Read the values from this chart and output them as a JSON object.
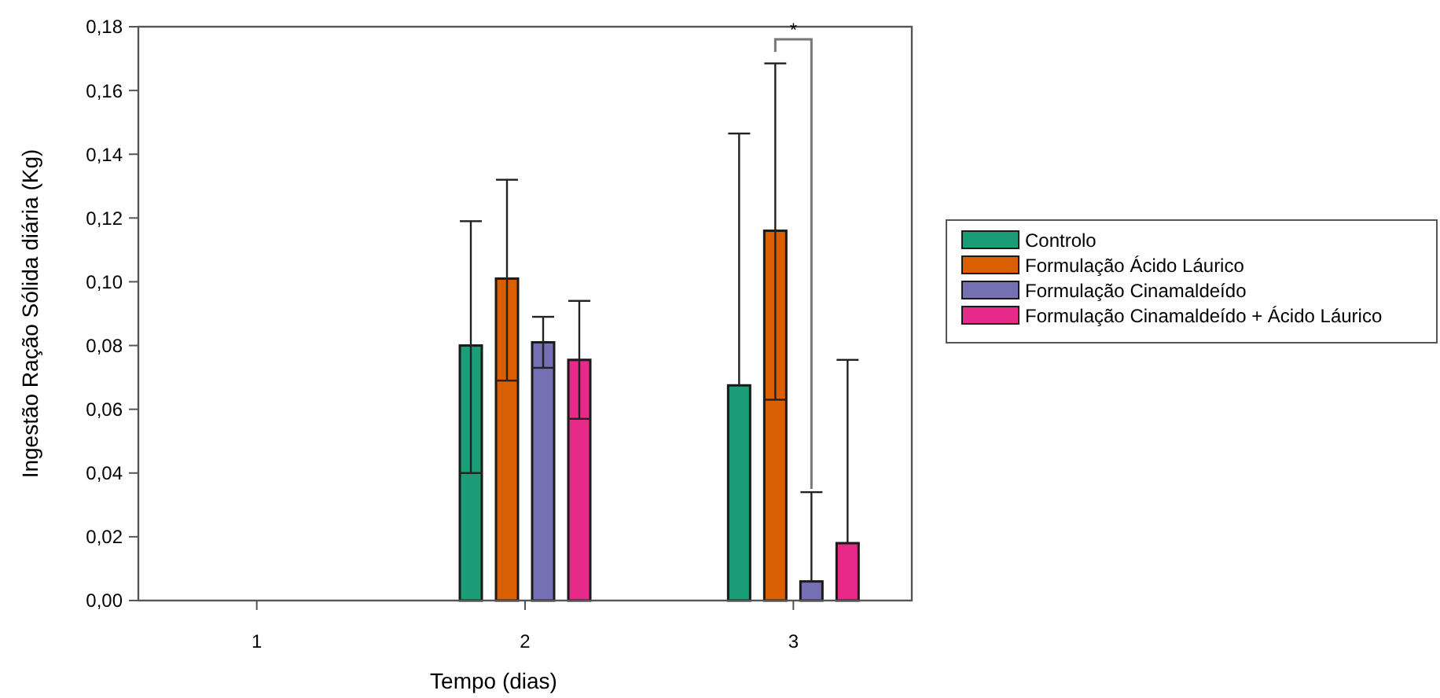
{
  "chart_data": {
    "type": "bar",
    "xlabel": "Tempo (dias)",
    "ylabel": "Ingestão Ração Sólida diária (Kg)",
    "categories": [
      "1",
      "2",
      "3"
    ],
    "series": [
      {
        "name": "Controlo",
        "color": "#1b9e77",
        "values": [
          null,
          0.08,
          0.0675
        ],
        "errors": [
          null,
          [
            0.04,
            0.119
          ],
          [
            0.0675,
            0.1465
          ]
        ]
      },
      {
        "name": "Formulação Ácido Láurico",
        "color": "#d95f02",
        "values": [
          null,
          0.101,
          0.116
        ],
        "errors": [
          null,
          [
            0.069,
            0.132
          ],
          [
            0.063,
            0.1685
          ]
        ]
      },
      {
        "name": "Formulação Cinamaldeído",
        "color": "#7570b3",
        "values": [
          null,
          0.081,
          0.006
        ],
        "errors": [
          null,
          [
            0.073,
            0.089
          ],
          [
            0.006,
            0.034
          ]
        ]
      },
      {
        "name": "Formulação Cinamaldeído + Ácido Láurico",
        "color": "#e7298a",
        "values": [
          null,
          0.0755,
          0.018
        ],
        "errors": [
          null,
          [
            0.057,
            0.094
          ],
          [
            0.018,
            0.0755
          ]
        ]
      }
    ],
    "ylim": [
      0,
      0.18
    ],
    "yticks": [
      {
        "value": 0,
        "label": "0,00"
      },
      {
        "value": 0.02,
        "label": "0,02"
      },
      {
        "value": 0.04,
        "label": "0,04"
      },
      {
        "value": 0.06,
        "label": "0,06"
      },
      {
        "value": 0.08,
        "label": "0,08"
      },
      {
        "value": 0.1,
        "label": "0,10"
      },
      {
        "value": 0.12,
        "label": "0,12"
      },
      {
        "value": 0.14,
        "label": "0,14"
      },
      {
        "value": 0.16,
        "label": "0,16"
      },
      {
        "value": 0.18,
        "label": "0,18"
      }
    ],
    "annotations": [
      "*"
    ],
    "legend": "right",
    "grid": false
  }
}
